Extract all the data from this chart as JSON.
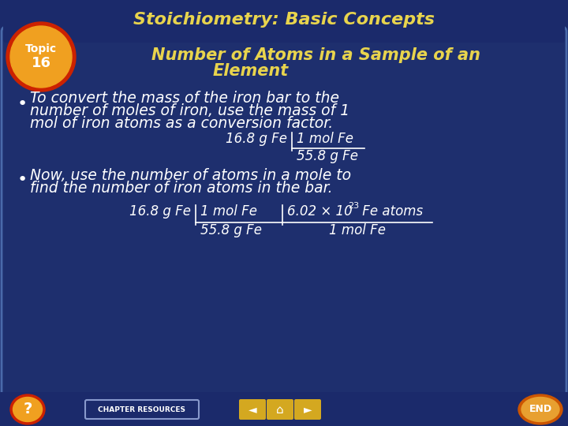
{
  "title": "Stoichiometry: Basic Concepts",
  "topic_number": "16",
  "topic_label": "Topic",
  "subtitle_line1": "Number of Atoms in a Sample of an",
  "subtitle_line2": "Element",
  "bullet1_line1": "To convert the mass of the iron bar to the",
  "bullet1_line2": "number of moles of iron, use the mass of 1",
  "bullet1_line3": "mol of iron atoms as a conversion factor.",
  "bullet2_line1": "Now, use the number of atoms in a mole to",
  "bullet2_line2": "find the number of iron atoms in the bar.",
  "bg_outer": "#1b2a6b",
  "bg_inner": "#1e2f6e",
  "bg_title": "#1b2a6b",
  "title_color": "#e8d44d",
  "subtitle_color": "#e8d44d",
  "body_color": "#ffffff",
  "topic_outer_color": "#cc2200",
  "topic_inner_color": "#f0a020",
  "topic_text_color": "#ffffff",
  "formula_color": "#ffffff",
  "border_color": "#4a6aaa",
  "bottom_bg": "#1b2a6b",
  "chapter_btn_bg": "#1b2a6b",
  "chapter_btn_border": "#8899cc",
  "chapter_btn_text": "#ffffff",
  "nav_btn_color": "#d4a820",
  "end_btn_outer": "#cc5500",
  "end_btn_inner": "#e8a030"
}
